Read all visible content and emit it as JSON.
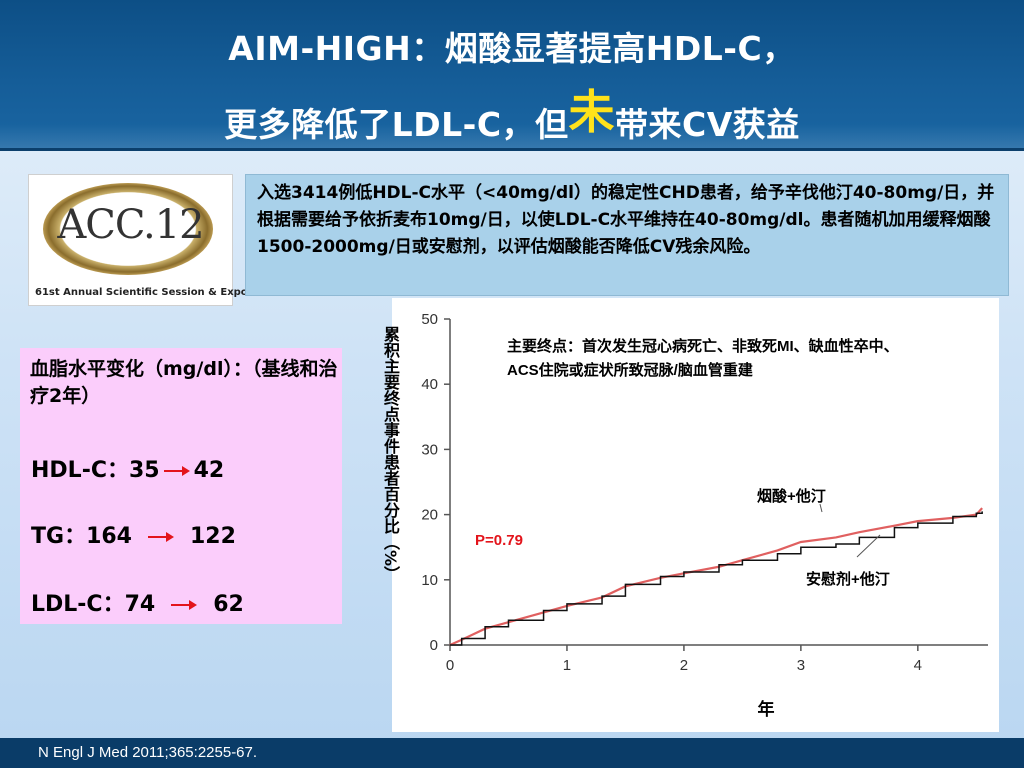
{
  "title": {
    "line1": "AIM-HIGH：烟酸显著提高HDL-C，",
    "line2_before": "更多降低了LDL-C，但",
    "line2_emph": "未",
    "line2_after": "带来CV获益"
  },
  "logo": {
    "text": "ACC.12",
    "sub": "61st Annual Scientific Session & Expo"
  },
  "info": {
    "text": "入选3414例低HDL-C水平（<40mg/dl）的稳定性CHD患者，给予辛伐他汀40-80mg/日，并根据需要给予依折麦布10mg/日，以使LDL-C水平维持在40-80mg/dl。患者随机加用缓释烟酸1500-2000mg/日或安慰剂，以评估烟酸能否降低CV残余风险。"
  },
  "lipids": {
    "header": "血脂水平变化（mg/dl）：（基线和治疗2年）",
    "rows": [
      {
        "name": "HDL-C：35",
        "to": "42"
      },
      {
        "name": "TG：164",
        "to": "122"
      },
      {
        "name": "LDL-C：74",
        "to": "62"
      }
    ]
  },
  "colors": {
    "niacin": "#e06060",
    "placebo": "#111111",
    "pvalue": "#e3141b",
    "arrow": "#e3141b"
  },
  "chart_data": {
    "type": "line",
    "xlabel": "年",
    "ylabel": "累积主要终点事件患者百分比（%）",
    "xlim": [
      0,
      4.6
    ],
    "ylim": [
      0,
      50
    ],
    "xticks": [
      "0",
      "1",
      "2",
      "3",
      "4"
    ],
    "yticks": [
      "0",
      "10",
      "20",
      "30",
      "40",
      "50"
    ],
    "annotation": "主要终点：首次发生冠心病死亡、非致死MI、缺血性卒中、ACS住院或症状所致冠脉/脑血管重建",
    "pvalue": "P=0.79",
    "series": [
      {
        "name": "烟酸+他汀",
        "color": "#e06060",
        "x": [
          0,
          0.1,
          0.3,
          0.5,
          0.8,
          1.0,
          1.3,
          1.5,
          1.8,
          2.0,
          2.3,
          2.5,
          2.8,
          3.0,
          3.3,
          3.5,
          3.8,
          4.0,
          4.3,
          4.5,
          4.55
        ],
        "y": [
          0,
          0.8,
          2.5,
          3.5,
          5.0,
          6.0,
          7.3,
          9.0,
          10.3,
          11.0,
          12.0,
          13.0,
          14.5,
          15.8,
          16.5,
          17.3,
          18.3,
          19.0,
          19.5,
          20.0,
          21.0
        ]
      },
      {
        "name": "安慰剂+他汀",
        "color": "#111111",
        "x": [
          0,
          0.1,
          0.3,
          0.5,
          0.8,
          1.0,
          1.3,
          1.5,
          1.8,
          2.0,
          2.3,
          2.5,
          2.8,
          3.0,
          3.3,
          3.5,
          3.8,
          4.0,
          4.3,
          4.5,
          4.55
        ],
        "y": [
          0,
          1.0,
          2.8,
          3.8,
          5.3,
          6.3,
          7.5,
          9.3,
          10.5,
          11.2,
          12.3,
          13.0,
          14.0,
          15.0,
          15.5,
          16.5,
          18.0,
          18.7,
          19.7,
          20.2,
          20.5
        ]
      }
    ]
  },
  "reference": "N Engl J Med 2011;365:2255-67."
}
